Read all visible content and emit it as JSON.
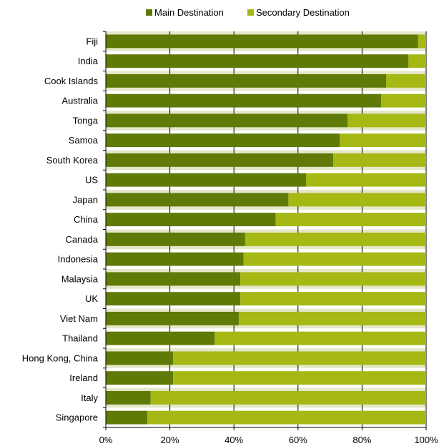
{
  "chart_data": {
    "type": "bar",
    "orientation": "horizontal",
    "stacked": "percent",
    "categories": [
      "Fiji",
      "India",
      "Cook Islands",
      "Australia",
      "Tonga",
      "Samoa",
      "South Korea",
      "US",
      "Japan",
      "China",
      "Canada",
      "Indonesia",
      "Malaysia",
      "UK",
      "Viet Nam",
      "Thailand",
      "Hong Kong, China",
      "Ireland",
      "Italy",
      "Singapore"
    ],
    "series": [
      {
        "name": "Main Destination",
        "color": "#5f7a06",
        "values": [
          97.5,
          94.5,
          87.5,
          86,
          75.5,
          73,
          71,
          62.5,
          57,
          53,
          43.5,
          43,
          42,
          42,
          41.5,
          34,
          21,
          21,
          14,
          13
        ]
      },
      {
        "name": "Secondary Destination",
        "color": "#a5b813",
        "values": [
          2.5,
          5.5,
          12.5,
          14,
          24.5,
          27,
          29,
          37.5,
          43,
          47,
          56.5,
          57,
          58,
          58,
          58.5,
          66,
          79,
          79,
          86,
          87
        ]
      }
    ],
    "xlim": [
      0,
      100
    ],
    "xticks": [
      "0%",
      "20%",
      "40%",
      "60%",
      "80%",
      "100%"
    ],
    "legend_position": "top",
    "band_color": "#e4e8c9",
    "grid": "vertical"
  }
}
